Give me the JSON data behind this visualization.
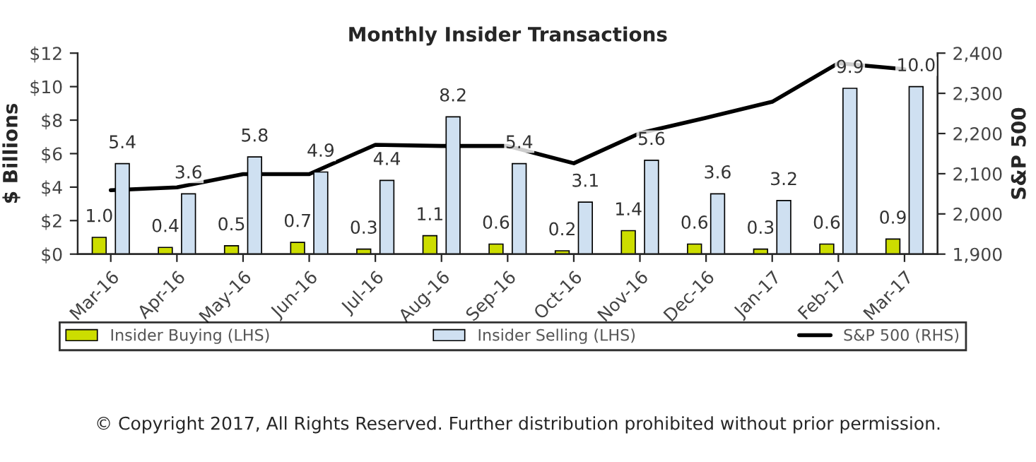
{
  "chart_data": {
    "type": "bar",
    "title": "Monthly Insider Transactions",
    "ylabel": "$ Billions",
    "y2label": "S&P 500",
    "categories": [
      "Mar-16",
      "Apr-16",
      "May-16",
      "Jun-16",
      "Jul-16",
      "Aug-16",
      "Sep-16",
      "Oct-16",
      "Nov-16",
      "Dec-16",
      "Jan-17",
      "Feb-17",
      "Mar-17"
    ],
    "series": [
      {
        "name": "Insider Buying (LHS)",
        "color": "#ccdd00",
        "values": [
          1.0,
          0.4,
          0.5,
          0.7,
          0.3,
          1.1,
          0.6,
          0.2,
          1.4,
          0.6,
          0.3,
          0.6,
          0.9
        ],
        "value_labels": [
          "1.0",
          "0.4",
          "0.5",
          "0.7",
          "0.3",
          "1.1",
          "0.6",
          "0.2",
          "1.4",
          "0.6",
          "0.3",
          "0.6",
          "0.9"
        ]
      },
      {
        "name": "Insider Selling (LHS)",
        "color": "#cfe0f1",
        "values": [
          5.4,
          3.6,
          5.8,
          4.9,
          4.4,
          8.2,
          5.4,
          3.1,
          5.6,
          3.6,
          3.2,
          9.9,
          10.0
        ],
        "value_labels": [
          "5.4",
          "3.6",
          "5.8",
          "4.9",
          "4.4",
          "8.2",
          "5.4",
          "3.1",
          "5.6",
          "3.6",
          "3.2",
          "9.9",
          "10.0"
        ]
      },
      {
        "name": "S&P 500 (RHS)",
        "type": "line",
        "axis": "y2",
        "color": "#000000",
        "values": [
          2059,
          2066,
          2099,
          2099,
          2172,
          2169,
          2169,
          2126,
          2201,
          2239,
          2279,
          2375,
          2360
        ]
      }
    ],
    "ylim": [
      0,
      12
    ],
    "yticks": [
      {
        "value": 0,
        "label": "$0"
      },
      {
        "value": 2,
        "label": "$2"
      },
      {
        "value": 4,
        "label": "$4"
      },
      {
        "value": 6,
        "label": "$6"
      },
      {
        "value": 8,
        "label": "$8"
      },
      {
        "value": 10,
        "label": "$10"
      },
      {
        "value": 12,
        "label": "$12"
      }
    ],
    "y2lim": [
      1900,
      2400
    ],
    "y2ticks": [
      {
        "value": 1900,
        "label": "1,900"
      },
      {
        "value": 2000,
        "label": "2,000"
      },
      {
        "value": 2100,
        "label": "2,100"
      },
      {
        "value": 2200,
        "label": "2,200"
      },
      {
        "value": 2300,
        "label": "2,300"
      },
      {
        "value": 2400,
        "label": "2,400"
      }
    ],
    "grid": false,
    "legend": "bottom",
    "marker": "none",
    "line_style": "solid",
    "annotations": [
      "© Copyright 2017, All Rights Reserved. Further distribution prohibited without prior permission."
    ]
  }
}
